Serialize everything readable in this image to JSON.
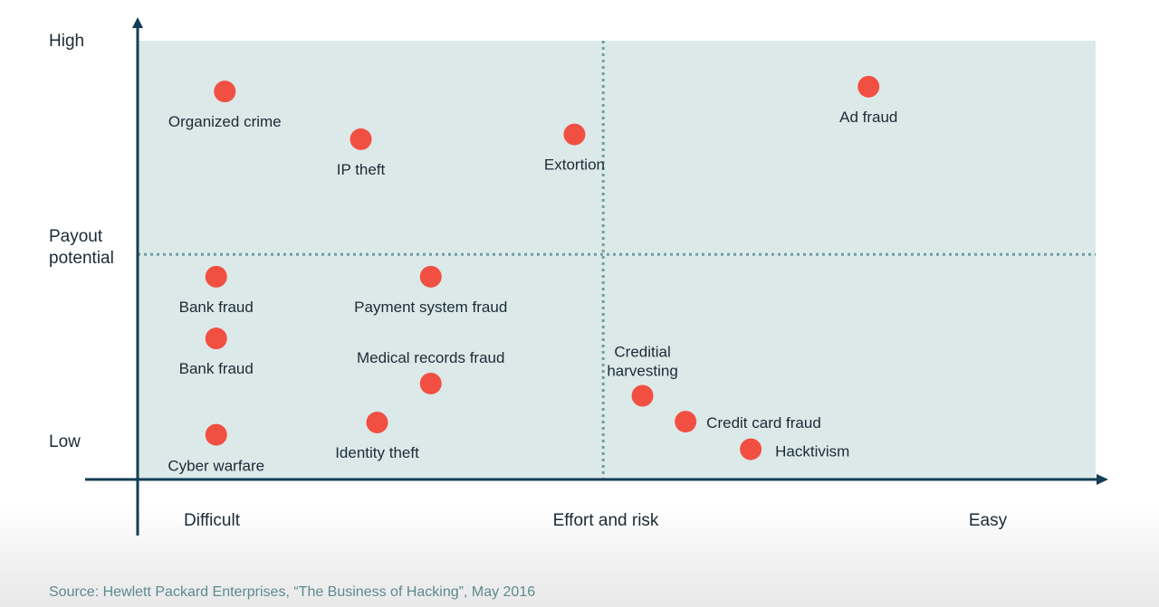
{
  "chart_data": {
    "type": "scatter",
    "axis_labels": {
      "y_high": "High",
      "y_title_line1": "Payout",
      "y_title_line2": "potential",
      "y_low": "Low",
      "x_left": "Difficult",
      "x_title": "Effort and risk",
      "x_right": "Easy"
    },
    "xlim": [
      0,
      10
    ],
    "ylim": [
      0,
      10
    ],
    "quadrant_dividers": {
      "x": 4.86,
      "y": 5.12
    },
    "point_color": "#f24f43",
    "panel_color": "#dce9e9",
    "axis_color": "#143e54",
    "divider_color": "#6f9ea2",
    "points": [
      {
        "label": "Organized crime",
        "x": 0.91,
        "y": 8.84
      },
      {
        "label": "IP theft",
        "x": 2.33,
        "y": 7.75
      },
      {
        "label": "Extortion",
        "x": 4.56,
        "y": 7.86
      },
      {
        "label": "Ad fraud",
        "x": 7.63,
        "y": 8.95
      },
      {
        "label": "Bank fraud",
        "x": 0.82,
        "y": 4.61
      },
      {
        "label": "Payment system fraud",
        "x": 3.06,
        "y": 4.61
      },
      {
        "label": "Bank fraud",
        "x": 0.82,
        "y": 3.2
      },
      {
        "label": "Medical records fraud",
        "x": 3.06,
        "y": 2.17
      },
      {
        "label": "Creditial harvesting",
        "x": 5.27,
        "y": 1.89
      },
      {
        "label": "Credit card fraud",
        "x": 5.72,
        "y": 1.3
      },
      {
        "label": "Hacktivism",
        "x": 6.4,
        "y": 0.67
      },
      {
        "label": "Identity theft",
        "x": 2.5,
        "y": 1.28
      },
      {
        "label": "Cyber warfare",
        "x": 0.82,
        "y": 1.0
      }
    ]
  },
  "source": "Source: Hewlett Packard Enterprises, “The Business of Hacking”, May 2016"
}
